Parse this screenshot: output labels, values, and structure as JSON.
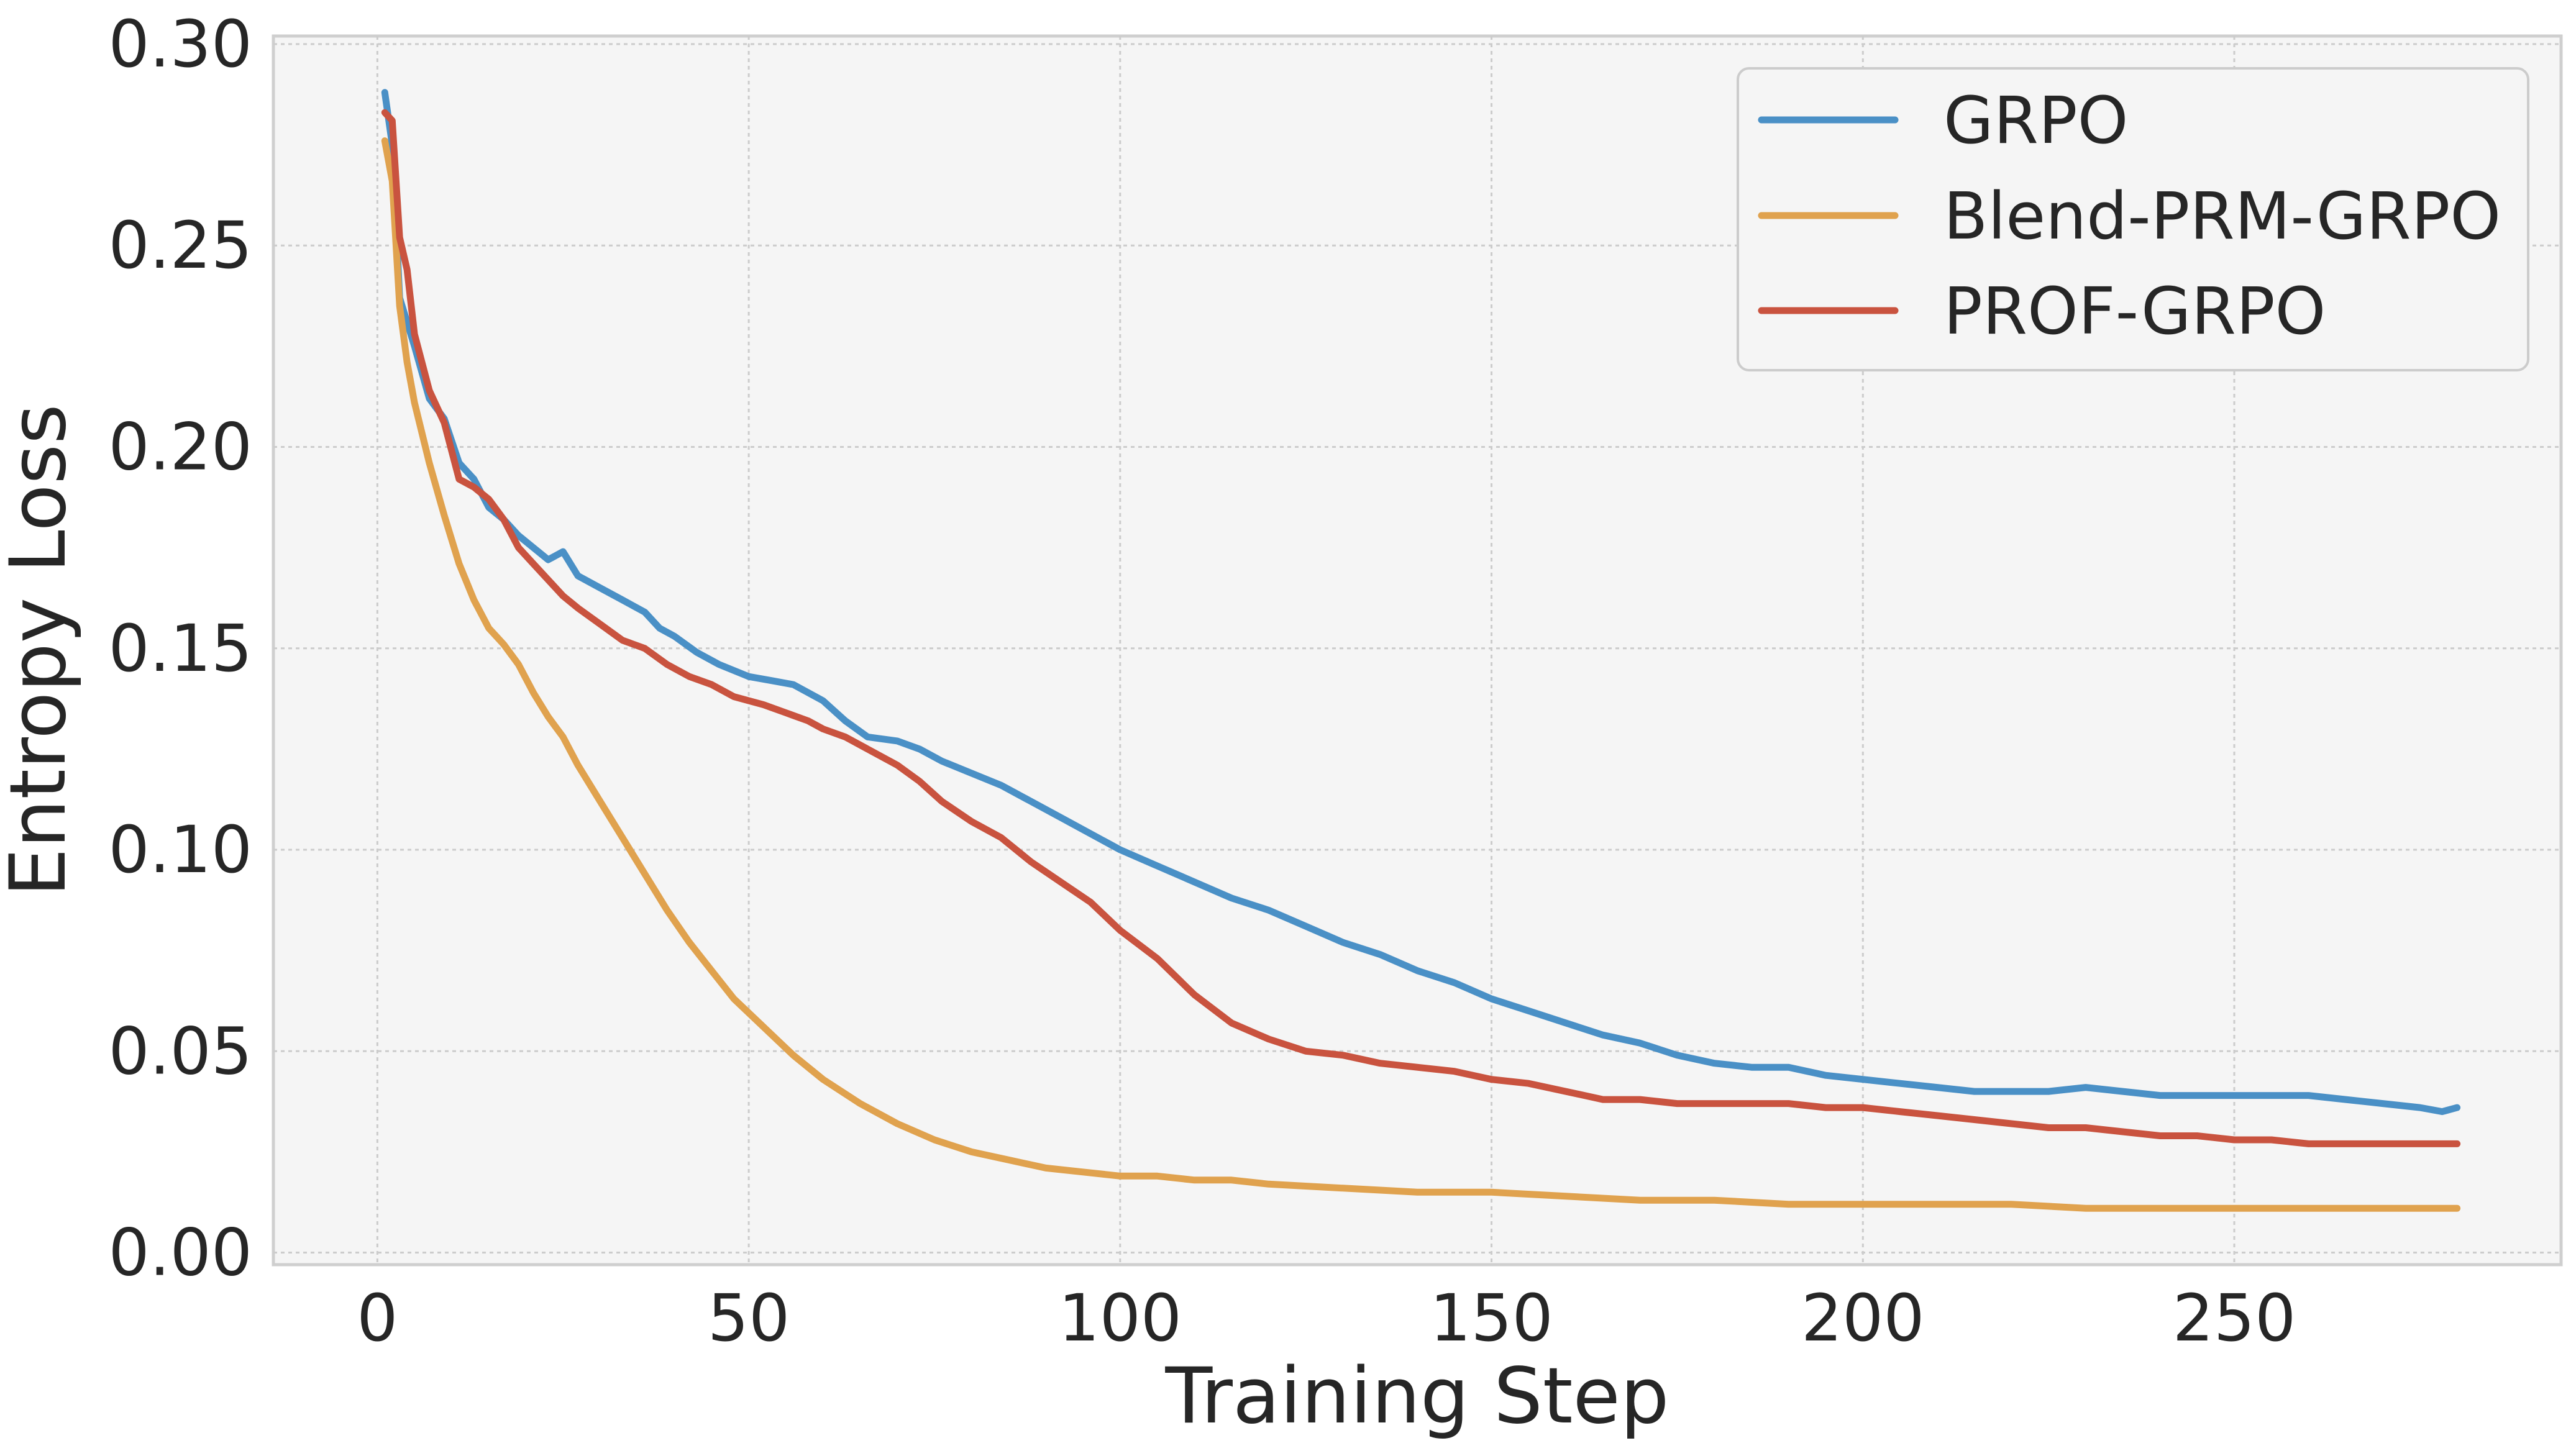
{
  "chart_data": {
    "type": "line",
    "title": "",
    "xlabel": "Training Step",
    "ylabel": "Entropy Loss",
    "xlim": [
      -14,
      294
    ],
    "ylim": [
      -0.003,
      0.302
    ],
    "xticks": [
      0,
      50,
      100,
      150,
      200,
      250
    ],
    "xtick_labels": [
      "0",
      "50",
      "100",
      "150",
      "200",
      "250"
    ],
    "yticks": [
      0.0,
      0.05,
      0.1,
      0.15,
      0.2,
      0.25,
      0.3
    ],
    "ytick_labels": [
      "0.00",
      "0.05",
      "0.10",
      "0.15",
      "0.20",
      "0.25",
      "0.30"
    ],
    "grid": true,
    "legend_position": "top-right",
    "background": "#f5f5f5",
    "series": [
      {
        "name": "GRPO",
        "color": "#4a90c6",
        "x": [
          1,
          2,
          3,
          5,
          7,
          9,
          11,
          13,
          15,
          17,
          19,
          21,
          23,
          25,
          27,
          30,
          33,
          36,
          38,
          40,
          43,
          46,
          50,
          53,
          56,
          58,
          60,
          63,
          66,
          70,
          73,
          76,
          80,
          84,
          88,
          92,
          96,
          100,
          105,
          110,
          115,
          120,
          125,
          130,
          135,
          140,
          145,
          150,
          155,
          160,
          165,
          170,
          175,
          180,
          185,
          190,
          195,
          200,
          205,
          210,
          215,
          220,
          225,
          230,
          235,
          240,
          245,
          250,
          255,
          260,
          265,
          270,
          275,
          278,
          280
        ],
        "y": [
          0.288,
          0.275,
          0.237,
          0.225,
          0.212,
          0.207,
          0.196,
          0.192,
          0.185,
          0.182,
          0.178,
          0.175,
          0.172,
          0.174,
          0.168,
          0.165,
          0.162,
          0.159,
          0.155,
          0.153,
          0.149,
          0.146,
          0.143,
          0.142,
          0.141,
          0.139,
          0.137,
          0.132,
          0.128,
          0.127,
          0.125,
          0.122,
          0.119,
          0.116,
          0.112,
          0.108,
          0.104,
          0.1,
          0.096,
          0.092,
          0.088,
          0.085,
          0.081,
          0.077,
          0.074,
          0.07,
          0.067,
          0.063,
          0.06,
          0.057,
          0.054,
          0.052,
          0.049,
          0.047,
          0.046,
          0.046,
          0.044,
          0.043,
          0.042,
          0.041,
          0.04,
          0.04,
          0.04,
          0.041,
          0.04,
          0.039,
          0.039,
          0.039,
          0.039,
          0.039,
          0.038,
          0.037,
          0.036,
          0.035,
          0.036
        ]
      },
      {
        "name": "Blend-PRM-GRPO",
        "color": "#e0a24e",
        "x": [
          1,
          2,
          3,
          4,
          5,
          7,
          9,
          11,
          13,
          15,
          17,
          19,
          21,
          23,
          25,
          27,
          30,
          33,
          36,
          39,
          42,
          45,
          48,
          52,
          56,
          60,
          65,
          70,
          75,
          80,
          85,
          90,
          95,
          100,
          105,
          110,
          115,
          120,
          130,
          140,
          150,
          160,
          170,
          180,
          190,
          200,
          210,
          220,
          230,
          240,
          250,
          260,
          270,
          280
        ],
        "y": [
          0.276,
          0.266,
          0.235,
          0.221,
          0.211,
          0.196,
          0.183,
          0.171,
          0.162,
          0.155,
          0.151,
          0.146,
          0.139,
          0.133,
          0.128,
          0.121,
          0.112,
          0.103,
          0.094,
          0.085,
          0.077,
          0.07,
          0.063,
          0.056,
          0.049,
          0.043,
          0.037,
          0.032,
          0.028,
          0.025,
          0.023,
          0.021,
          0.02,
          0.019,
          0.019,
          0.018,
          0.018,
          0.017,
          0.016,
          0.015,
          0.015,
          0.014,
          0.013,
          0.013,
          0.012,
          0.012,
          0.012,
          0.012,
          0.011,
          0.011,
          0.011,
          0.011,
          0.011,
          0.011
        ]
      },
      {
        "name": "PROF-GRPO",
        "color": "#c9533f",
        "x": [
          1,
          2,
          3,
          4,
          5,
          7,
          9,
          11,
          13,
          15,
          17,
          19,
          21,
          23,
          25,
          27,
          30,
          33,
          36,
          39,
          42,
          45,
          48,
          52,
          55,
          58,
          60,
          63,
          66,
          70,
          73,
          76,
          80,
          84,
          88,
          92,
          96,
          100,
          105,
          110,
          115,
          120,
          125,
          130,
          135,
          140,
          145,
          150,
          155,
          160,
          165,
          170,
          175,
          180,
          185,
          190,
          195,
          200,
          205,
          210,
          215,
          220,
          225,
          230,
          235,
          240,
          245,
          250,
          255,
          260,
          265,
          270,
          275,
          280
        ],
        "y": [
          0.283,
          0.281,
          0.252,
          0.244,
          0.228,
          0.214,
          0.206,
          0.192,
          0.19,
          0.187,
          0.182,
          0.175,
          0.171,
          0.167,
          0.163,
          0.16,
          0.156,
          0.152,
          0.15,
          0.146,
          0.143,
          0.141,
          0.138,
          0.136,
          0.134,
          0.132,
          0.13,
          0.128,
          0.125,
          0.121,
          0.117,
          0.112,
          0.107,
          0.103,
          0.097,
          0.092,
          0.087,
          0.08,
          0.073,
          0.064,
          0.057,
          0.053,
          0.05,
          0.049,
          0.047,
          0.046,
          0.045,
          0.043,
          0.042,
          0.04,
          0.038,
          0.038,
          0.037,
          0.037,
          0.037,
          0.037,
          0.036,
          0.036,
          0.035,
          0.034,
          0.033,
          0.032,
          0.031,
          0.031,
          0.03,
          0.029,
          0.029,
          0.028,
          0.028,
          0.027,
          0.027,
          0.027,
          0.027,
          0.027
        ]
      }
    ]
  }
}
